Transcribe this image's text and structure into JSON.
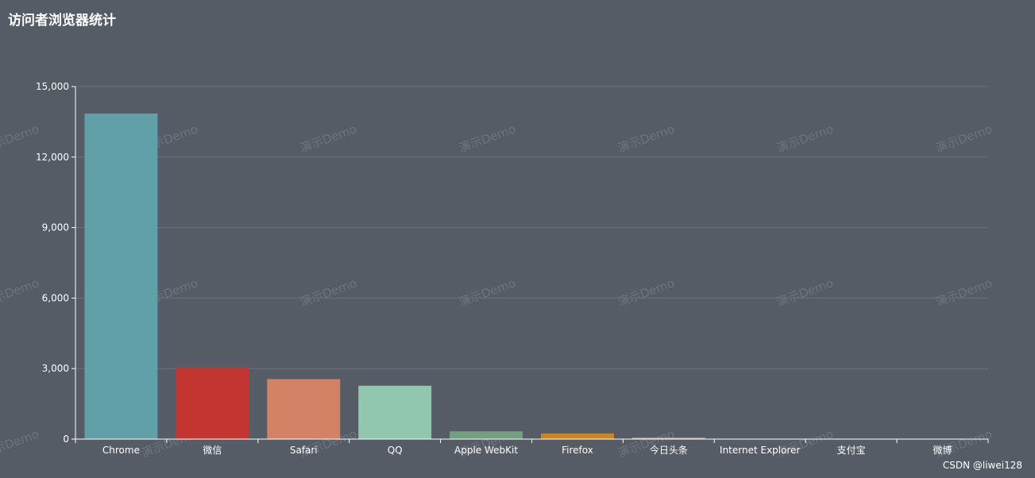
{
  "title": "访问者浏览器统计",
  "credit": "CSDN @liwei128",
  "watermark": "演示Demo",
  "colors": {
    "background": "#555c66",
    "axis": "#ffffff",
    "grid": "#6b727c"
  },
  "chart_data": {
    "type": "bar",
    "title": "访问者浏览器统计",
    "categories": [
      "Chrome",
      "微信",
      "Safari",
      "QQ",
      "Apple WebKit",
      "Firefox",
      "今日头条",
      "Internet Explorer",
      "支付宝",
      "微博"
    ],
    "values": [
      13850,
      3050,
      2550,
      2270,
      330,
      240,
      60,
      15,
      5,
      2
    ],
    "colors": [
      "#61a0a8",
      "#c23531",
      "#d48265",
      "#91c7ae",
      "#749f83",
      "#ca8622",
      "#bda29a",
      "#6e7074",
      "#546570",
      "#c4ccd3"
    ],
    "yticks": [
      "0",
      "3,000",
      "6,000",
      "9,000",
      "12,000",
      "15,000"
    ],
    "ylim": [
      0,
      15000
    ],
    "grid": true,
    "legend": "none"
  }
}
